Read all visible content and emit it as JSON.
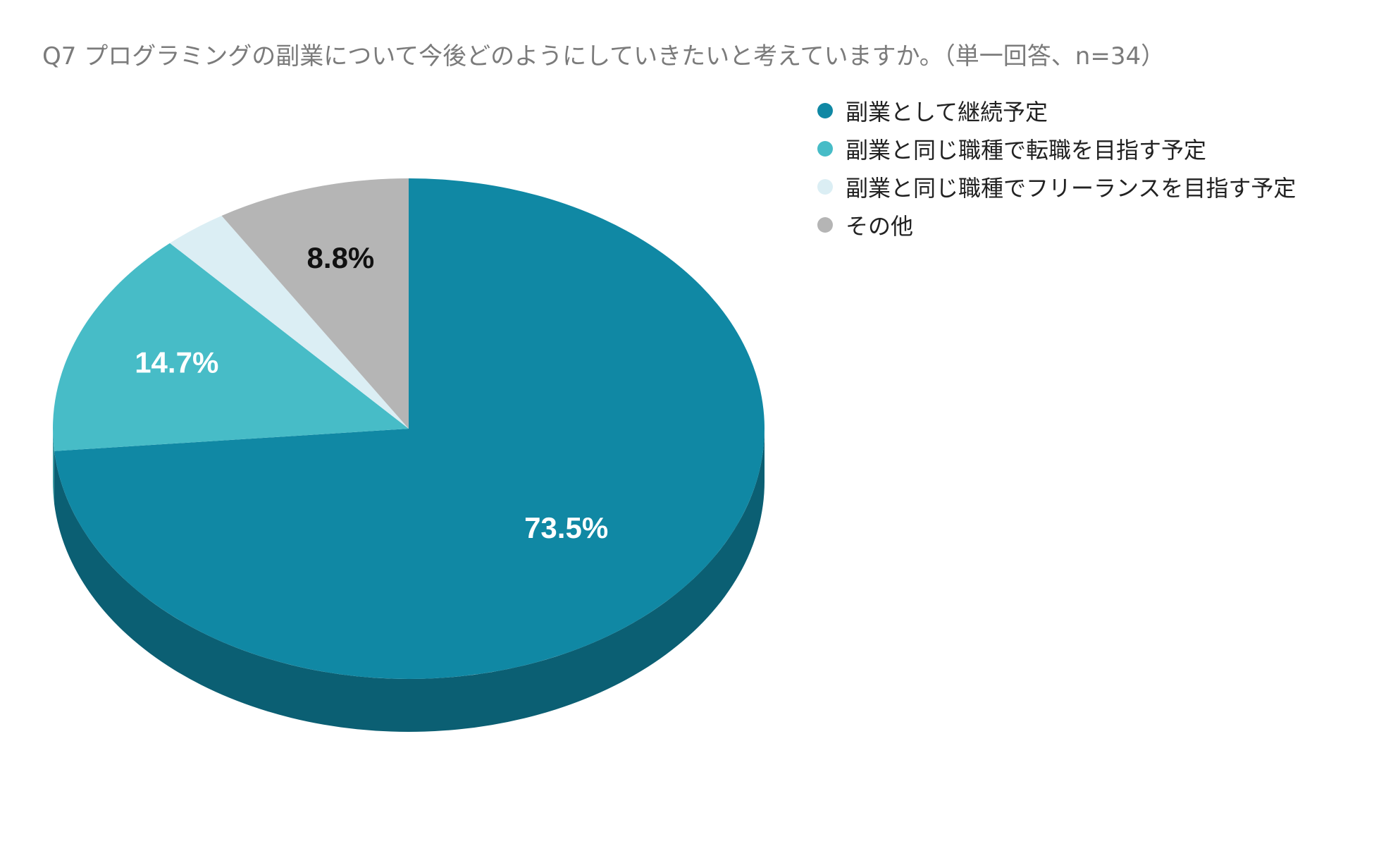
{
  "chart_data": {
    "type": "pie",
    "title": "Q7 プログラミングの副業について今後どのようにしていきたいと考えていますか。（単一回答、n=34）",
    "categories": [
      "副業として継続予定",
      "副業と同じ職種で転職を目指す予定",
      "副業と同じ職種でフリーランスを目指す予定",
      "その他"
    ],
    "values": [
      73.5,
      14.7,
      2.9,
      8.8
    ],
    "value_labels": [
      "73.5%",
      "14.7%",
      "",
      "8.8%"
    ],
    "colors": [
      "#1088a4",
      "#47bcc7",
      "#dbeef4",
      "#b5b5b5"
    ],
    "side_colors": [
      "#0b5f73",
      "#3a97a0",
      "#b8cbd0",
      "#8f8f8f"
    ],
    "label_colors": [
      "#ffffff",
      "#ffffff",
      "#222222",
      "#111111"
    ],
    "legend_position": "top-right",
    "style": "3d"
  }
}
